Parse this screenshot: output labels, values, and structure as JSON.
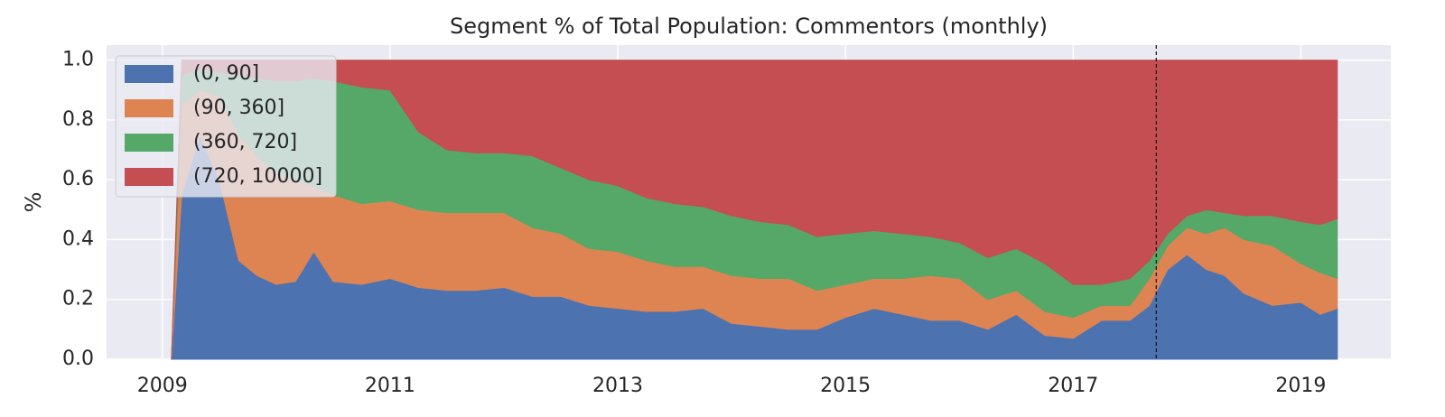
{
  "chart_data": {
    "type": "stacked_area",
    "title": "Segment % of Total Population: Commentors (monthly)",
    "ylabel": "%",
    "x": [
      2009.08,
      2009.17,
      2009.33,
      2009.5,
      2009.67,
      2009.83,
      2010.0,
      2010.17,
      2010.33,
      2010.5,
      2010.75,
      2011.0,
      2011.25,
      2011.5,
      2011.75,
      2012.0,
      2012.25,
      2012.5,
      2012.75,
      2013.0,
      2013.25,
      2013.5,
      2013.75,
      2014.0,
      2014.25,
      2014.5,
      2014.75,
      2015.0,
      2015.25,
      2015.5,
      2015.75,
      2016.0,
      2016.25,
      2016.5,
      2016.75,
      2017.0,
      2017.25,
      2017.5,
      2017.67,
      2017.83,
      2018.0,
      2018.17,
      2018.33,
      2018.5,
      2018.75,
      2019.0,
      2019.17,
      2019.32
    ],
    "series": [
      {
        "name": "(0, 90]",
        "color": "#4c72b0",
        "values": [
          0,
          0.55,
          0.75,
          0.6,
          0.33,
          0.28,
          0.25,
          0.26,
          0.36,
          0.26,
          0.25,
          0.27,
          0.24,
          0.23,
          0.23,
          0.24,
          0.21,
          0.21,
          0.18,
          0.17,
          0.16,
          0.16,
          0.17,
          0.12,
          0.11,
          0.1,
          0.1,
          0.14,
          0.17,
          0.15,
          0.13,
          0.13,
          0.1,
          0.15,
          0.08,
          0.07,
          0.13,
          0.13,
          0.18,
          0.3,
          0.35,
          0.3,
          0.28,
          0.22,
          0.18,
          0.19,
          0.15,
          0.17
        ]
      },
      {
        "name": "(90, 360]",
        "color": "#dd8452",
        "values": [
          0,
          0.3,
          0.15,
          0.28,
          0.42,
          0.4,
          0.37,
          0.34,
          0.22,
          0.29,
          0.27,
          0.26,
          0.26,
          0.26,
          0.26,
          0.25,
          0.23,
          0.21,
          0.19,
          0.19,
          0.17,
          0.15,
          0.14,
          0.16,
          0.16,
          0.17,
          0.13,
          0.11,
          0.1,
          0.12,
          0.15,
          0.14,
          0.1,
          0.08,
          0.08,
          0.07,
          0.05,
          0.05,
          0.09,
          0.08,
          0.09,
          0.12,
          0.16,
          0.18,
          0.2,
          0.13,
          0.14,
          0.1
        ]
      },
      {
        "name": "(360, 720]",
        "color": "#55a868",
        "values": [
          0,
          0.1,
          0.07,
          0.08,
          0.2,
          0.26,
          0.31,
          0.33,
          0.36,
          0.38,
          0.39,
          0.37,
          0.26,
          0.21,
          0.2,
          0.2,
          0.24,
          0.22,
          0.23,
          0.22,
          0.21,
          0.21,
          0.2,
          0.2,
          0.19,
          0.18,
          0.18,
          0.17,
          0.16,
          0.15,
          0.13,
          0.12,
          0.14,
          0.14,
          0.16,
          0.11,
          0.07,
          0.09,
          0.06,
          0.04,
          0.04,
          0.08,
          0.05,
          0.08,
          0.1,
          0.14,
          0.16,
          0.2
        ]
      },
      {
        "name": "(720, 10000]",
        "color": "#c44e52",
        "values": [
          0,
          0.05,
          0.03,
          0.04,
          0.05,
          0.06,
          0.07,
          0.07,
          0.06,
          0.07,
          0.09,
          0.1,
          0.24,
          0.3,
          0.31,
          0.31,
          0.32,
          0.36,
          0.4,
          0.42,
          0.46,
          0.48,
          0.49,
          0.52,
          0.54,
          0.55,
          0.59,
          0.58,
          0.57,
          0.58,
          0.59,
          0.61,
          0.66,
          0.63,
          0.68,
          0.75,
          0.75,
          0.73,
          0.67,
          0.58,
          0.52,
          0.5,
          0.51,
          0.52,
          0.52,
          0.54,
          0.55,
          0.53
        ]
      }
    ],
    "xlim": [
      2008.51,
      2019.79
    ],
    "xticks": [
      2009,
      2011,
      2013,
      2015,
      2017,
      2019
    ],
    "ylim": [
      0,
      1.05
    ],
    "yticks": [
      {
        "value": 0,
        "label": "0.0"
      },
      0.2,
      0.4,
      0.6,
      0.8,
      {
        "value": 1,
        "label": "1.0"
      }
    ],
    "vline": 2017.73,
    "grid": true,
    "legend": "upper left"
  }
}
